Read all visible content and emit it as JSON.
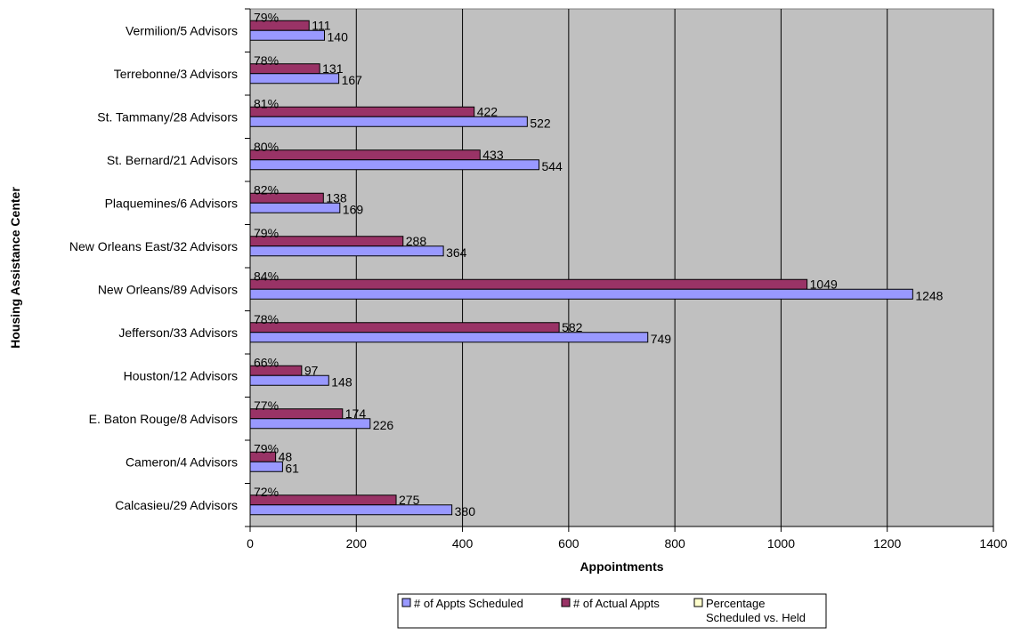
{
  "chart_data": {
    "type": "bar",
    "orientation": "horizontal",
    "title": "",
    "xlabel": "Appointments",
    "ylabel": "Housing Assistance Center",
    "xlim": [
      0,
      1400
    ],
    "xticks": [
      0,
      200,
      400,
      600,
      800,
      1000,
      1200,
      1400
    ],
    "grid": "vertical gridlines",
    "plot_background": "#c0c0c0",
    "legend_position": "bottom",
    "categories": [
      "Calcasieu/29 Advisors",
      "Cameron/4 Advisors",
      "E. Baton Rouge/8  Advisors",
      "Houston/12 Advisors",
      "Jefferson/33 Advisors",
      "New Orleans/89 Advisors",
      "New Orleans East/32 Advisors",
      "Plaquemines/6 Advisors",
      "St. Bernard/21 Advisors",
      "St. Tammany/28 Advisors",
      "Terrebonne/3 Advisors",
      "Vermilion/5 Advisors"
    ],
    "series": [
      {
        "name": "# of Appts Scheduled",
        "color": "#9999ff",
        "values": [
          380,
          61,
          226,
          148,
          749,
          1248,
          364,
          169,
          544,
          522,
          167,
          140
        ]
      },
      {
        "name": "# of Actual Appts",
        "color": "#993366",
        "values": [
          275,
          48,
          174,
          97,
          582,
          1049,
          288,
          138,
          433,
          422,
          131,
          111
        ]
      },
      {
        "name": "Percentage\nScheduled vs. Held",
        "color": "#ffffcc",
        "values": [
          72,
          79,
          77,
          66,
          78,
          84,
          79,
          82,
          80,
          81,
          78,
          79
        ],
        "labels": [
          "72%",
          "79%",
          "77%",
          "66%",
          "78%",
          "84%",
          "79%",
          "82%",
          "80%",
          "81%",
          "78%",
          "79%"
        ]
      }
    ]
  }
}
